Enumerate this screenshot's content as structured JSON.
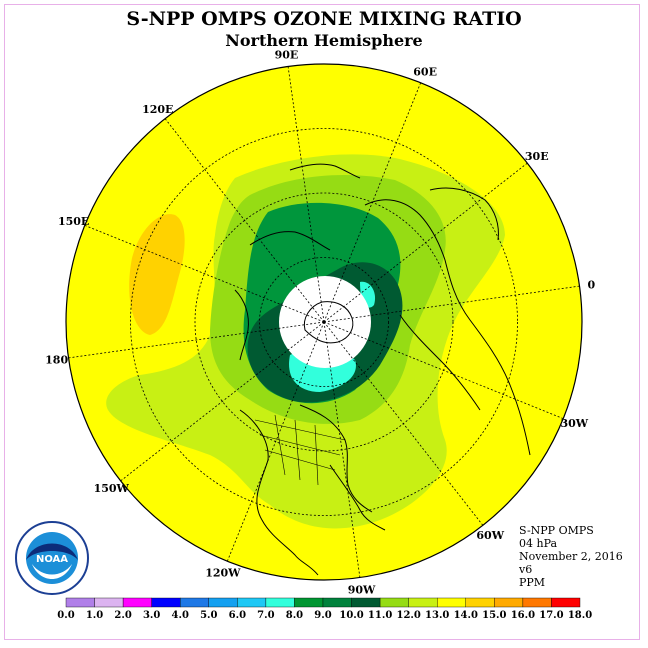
{
  "title": "S-NPP OMPS OZONE MIXING RATIO",
  "subtitle": "Northern Hemisphere",
  "info": {
    "instrument": "S-NPP OMPS",
    "level": "04 hPa",
    "date": "November 2, 2016",
    "version": "v6",
    "units": "PPM"
  },
  "longitude_labels": [
    "0",
    "30E",
    "60E",
    "90E",
    "120E",
    "150E",
    "180",
    "150W",
    "120W",
    "90W",
    "60W",
    "30W"
  ],
  "colorbar": {
    "ticks": [
      "0.0",
      "1.0",
      "2.0",
      "3.0",
      "4.0",
      "5.0",
      "6.0",
      "7.0",
      "8.0",
      "9.0",
      "10.0",
      "11.0",
      "12.0",
      "13.0",
      "14.0",
      "15.0",
      "16.0",
      "17.0",
      "18.0"
    ],
    "colors": [
      "#b07fe8",
      "#dcb4f0",
      "#ff00ff",
      "#0000ff",
      "#1e78e6",
      "#14a0f0",
      "#1ec8f5",
      "#32ffdc",
      "#009632",
      "#00823c",
      "#005a32",
      "#96dc14",
      "#c8f014",
      "#ffff00",
      "#ffd200",
      "#ffaa00",
      "#ff7800",
      "#ff0000",
      "#8c5a3c"
    ]
  },
  "colors": {
    "ocean_fill": "#ffff00",
    "band_11": "#c8f014",
    "band_10": "#96dc14",
    "band_9": "#00823c",
    "band_8": "#005a32",
    "band_7": "#32ffdc",
    "band_14": "#ffd200",
    "polar_night": "#ffffff"
  },
  "logo_text": "NOAA"
}
